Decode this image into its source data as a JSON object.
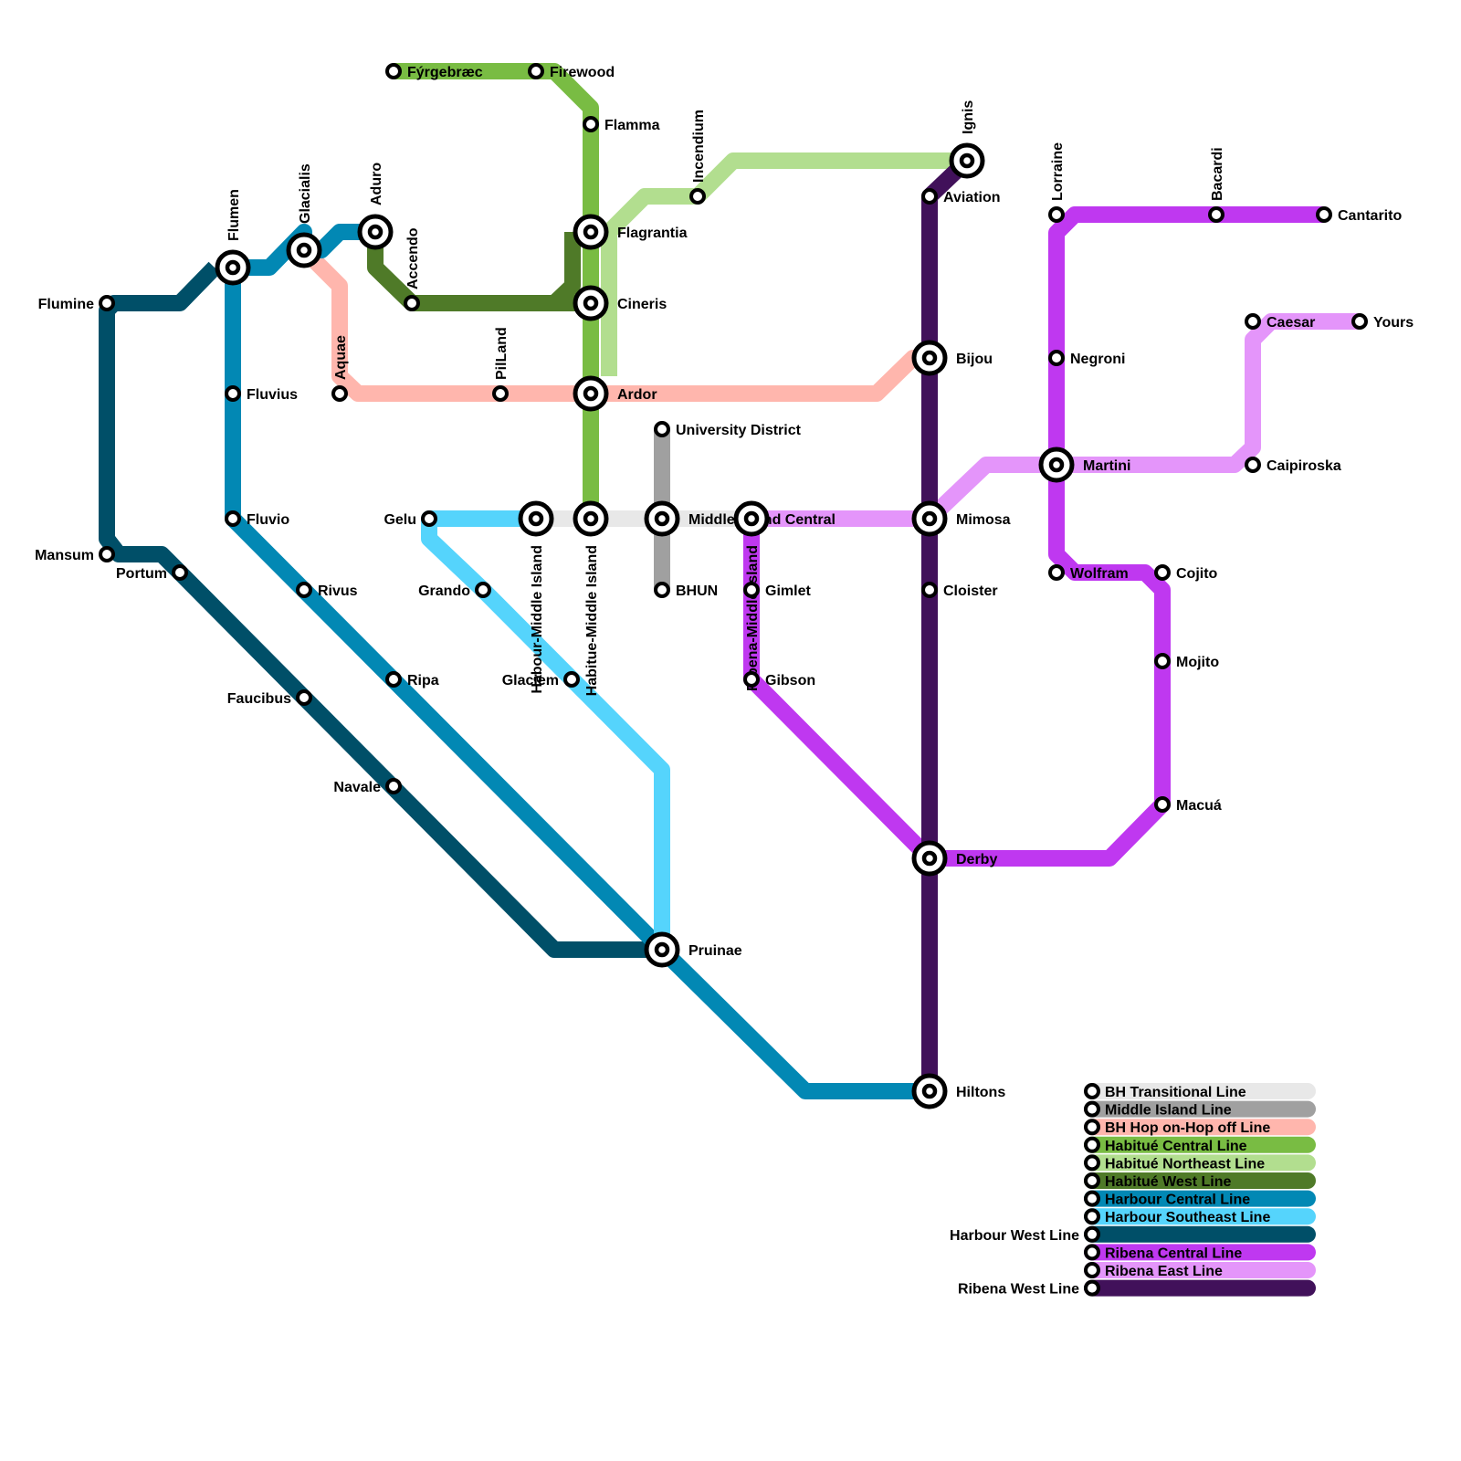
{
  "lines": {
    "bh_transitional": {
      "name": "BH Transitional Line",
      "color": "#e8e8e8"
    },
    "middle_island": {
      "name": "Middle Island Line",
      "color": "#a0a0a0"
    },
    "bh_hop": {
      "name": "BH Hop on-Hop off Line",
      "color": "#ffb6ad"
    },
    "habitue_central": {
      "name": "Habitué Central Line",
      "color": "#79bc43"
    },
    "habitue_northeast": {
      "name": "Habitué Northeast Line",
      "color": "#b2de8f"
    },
    "habitue_west": {
      "name": "Habitué West Line",
      "color": "#4f7a28"
    },
    "harbour_central": {
      "name": "Harbour Central Line",
      "color": "#0288b4"
    },
    "harbour_southeast": {
      "name": "Harbour Southeast Line",
      "color": "#55d4fc"
    },
    "harbour_west": {
      "name": "Harbour West Line",
      "color": "#004f68"
    },
    "ribena_central": {
      "name": "Ribena Central Line",
      "color": "#bf38f0"
    },
    "ribena_east": {
      "name": "Ribena East Line",
      "color": "#e495fa"
    },
    "ribena_west": {
      "name": "Ribena West Line",
      "color": "#41115a"
    }
  },
  "legend_order": [
    "bh_transitional",
    "middle_island",
    "bh_hop",
    "habitue_central",
    "habitue_northeast",
    "habitue_west",
    "harbour_central",
    "harbour_southeast",
    "harbour_west",
    "ribena_central",
    "ribena_east",
    "ribena_west"
  ],
  "stations": {
    "fyrgebraec": "Fýrgebræc",
    "firewood": "Firewood",
    "flamma": "Flamma",
    "incendium": "Incendium",
    "ignis": "Ignis",
    "aviation": "Aviation",
    "lorraine": "Lorraine",
    "bacardi": "Bacardi",
    "cantarito": "Cantarito",
    "flumen": "Flumen",
    "glacialis": "Glacialis",
    "aduro": "Aduro",
    "accendo": "Accendo",
    "flagrantia": "Flagrantia",
    "cineris": "Cineris",
    "flumine": "Flumine",
    "aquae": "Aquae",
    "pilland": "PilLand",
    "ardor": "Ardor",
    "fluvius": "Fluvius",
    "bijou": "Bijou",
    "negroni": "Negroni",
    "caesar": "Caesar",
    "yours": "Yours",
    "university_district": "University District",
    "martini": "Martini",
    "caipiroska": "Caipiroska",
    "gelu": "Gelu",
    "harbour_middle_island": "Habour-Middle Island",
    "habitue_middle_island": "Habitue-Middle Island",
    "middle_island_central": "Middle Island Central",
    "ribena_middle_island": "Ribena-Middle Island",
    "mimosa": "Mimosa",
    "fluvio": "Fluvio",
    "mansum": "Mansum",
    "portum": "Portum",
    "rivus": "Rivus",
    "grando": "Grando",
    "bhun": "BHUN",
    "gimlet": "Gimlet",
    "cloister": "Cloister",
    "wolfram": "Wolfram",
    "cojito": "Cojito",
    "mojito": "Mojito",
    "ripa": "Ripa",
    "glaciem": "Glaciem",
    "gibson": "Gibson",
    "faucibus": "Faucibus",
    "navale": "Navale",
    "macua": "Macuá",
    "derby": "Derby",
    "pruinae": "Pruinae",
    "hiltons": "Hiltons"
  }
}
